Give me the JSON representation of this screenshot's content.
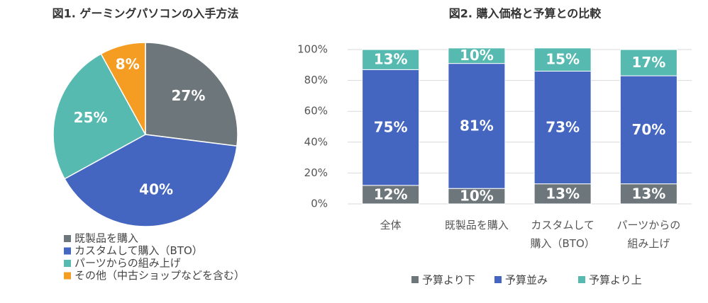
{
  "chart_data": [
    {
      "type": "pie",
      "title": "図1. ゲーミングパソコンの入手方法",
      "categories": [
        "既製品を購入",
        "カスタムして購入（BTO）",
        "パーツからの組み上げ",
        "その他（中古ショップなどを含む）"
      ],
      "values": [
        27,
        40,
        25,
        8
      ],
      "value_labels": [
        "27%",
        "40%",
        "25%",
        "8%"
      ],
      "colors": [
        "#6d777b",
        "#4466c1",
        "#56bab1",
        "#f59d22"
      ],
      "legend": "bottom"
    },
    {
      "type": "stacked_bar",
      "title": "図2. 購入価格と予算との比較",
      "categories": [
        "全体",
        "既製品を購入",
        "カスタムして\n購入（BTO）",
        "パーツからの\n組み上げ"
      ],
      "series": [
        {
          "name": "予算より下",
          "color": "#6d777b",
          "values": [
            12,
            10,
            13,
            13
          ],
          "value_labels": [
            "12%",
            "10%",
            "13%",
            "13%"
          ]
        },
        {
          "name": "予算並み",
          "color": "#4466c1",
          "values": [
            75,
            81,
            73,
            70
          ],
          "value_labels": [
            "75%",
            "81%",
            "73%",
            "70%"
          ]
        },
        {
          "name": "予算より上",
          "color": "#56bab1",
          "values": [
            13,
            10,
            15,
            17
          ],
          "value_labels": [
            "13%",
            "10%",
            "15%",
            "17%"
          ]
        }
      ],
      "ylim": [
        0,
        100
      ],
      "yticks": [
        {
          "value": 0,
          "label": "0%"
        },
        {
          "value": 20,
          "label": "20%"
        },
        {
          "value": 40,
          "label": "40%"
        },
        {
          "value": 60,
          "label": "60%"
        },
        {
          "value": 80,
          "label": "80%"
        },
        {
          "value": 100,
          "label": "100%"
        }
      ],
      "grid": true,
      "legend": "bottom"
    }
  ]
}
